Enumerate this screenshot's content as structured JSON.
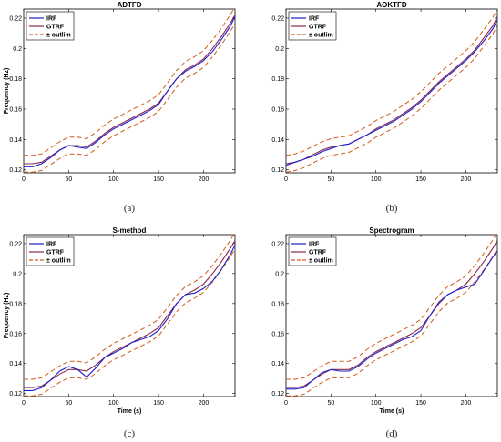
{
  "chart_data": [
    {
      "type": "line",
      "title": "ADTFD",
      "caption": "(a)",
      "xlabel": "",
      "ylabel": "Frequency (Hz)",
      "xlim": [
        0,
        235
      ],
      "ylim": [
        0.118,
        0.226
      ],
      "xticks": [
        0,
        50,
        100,
        150,
        200
      ],
      "yticks": [
        0.12,
        0.14,
        0.16,
        0.18,
        0.2,
        0.22
      ],
      "ytick_labels": [
        "0.12",
        "0.14",
        "0.16",
        "0.18",
        "0.2",
        "0.22"
      ],
      "legend": "top-left",
      "grid": false,
      "x": [
        0,
        10,
        20,
        30,
        40,
        50,
        60,
        70,
        80,
        90,
        100,
        110,
        120,
        130,
        140,
        150,
        160,
        170,
        180,
        190,
        200,
        210,
        220,
        230,
        235
      ],
      "series": [
        {
          "name": "IRF",
          "color": "#1f1fd0",
          "style": "solid",
          "values": [
            0.122,
            0.122,
            0.124,
            0.128,
            0.133,
            0.136,
            0.135,
            0.134,
            0.138,
            0.143,
            0.147,
            0.15,
            0.153,
            0.156,
            0.159,
            0.163,
            0.172,
            0.18,
            0.185,
            0.188,
            0.192,
            0.198,
            0.206,
            0.215,
            0.221
          ]
        },
        {
          "name": "GTRF",
          "color": "#8a2a4a",
          "style": "solid",
          "values": [
            0.124,
            0.124,
            0.125,
            0.129,
            0.133,
            0.136,
            0.136,
            0.135,
            0.139,
            0.144,
            0.148,
            0.151,
            0.154,
            0.157,
            0.16,
            0.164,
            0.172,
            0.18,
            0.186,
            0.189,
            0.193,
            0.2,
            0.208,
            0.217,
            0.222
          ]
        },
        {
          "name": "± outlim",
          "color": "#d05a1a",
          "style": "dashed",
          "offset": 0.0055
        }
      ]
    },
    {
      "type": "line",
      "title": "AOKTFD",
      "caption": "(b)",
      "xlabel": "",
      "ylabel": "",
      "xlim": [
        0,
        235
      ],
      "ylim": [
        0.118,
        0.226
      ],
      "xticks": [
        0,
        50,
        100,
        150,
        200
      ],
      "yticks": [
        0.12,
        0.14,
        0.16,
        0.18,
        0.2,
        0.22
      ],
      "ytick_labels": [
        "0.12",
        "0.14",
        "0.16",
        "0.18",
        "0.2",
        "0.22"
      ],
      "legend": "top-left",
      "grid": false,
      "x": [
        0,
        10,
        20,
        30,
        40,
        50,
        60,
        70,
        80,
        90,
        100,
        110,
        120,
        130,
        140,
        150,
        160,
        170,
        180,
        190,
        200,
        210,
        220,
        230,
        235
      ],
      "series": [
        {
          "name": "IRF",
          "color": "#1f1fd0",
          "style": "solid",
          "values": [
            0.123,
            0.125,
            0.127,
            0.129,
            0.132,
            0.134,
            0.136,
            0.137,
            0.14,
            0.143,
            0.146,
            0.149,
            0.152,
            0.156,
            0.16,
            0.165,
            0.171,
            0.177,
            0.182,
            0.187,
            0.192,
            0.198,
            0.205,
            0.213,
            0.219
          ]
        },
        {
          "name": "GTRF",
          "color": "#8a2a4a",
          "style": "solid",
          "values": [
            0.124,
            0.125,
            0.127,
            0.13,
            0.133,
            0.135,
            0.136,
            0.137,
            0.14,
            0.143,
            0.147,
            0.15,
            0.153,
            0.157,
            0.161,
            0.166,
            0.172,
            0.178,
            0.183,
            0.188,
            0.193,
            0.199,
            0.207,
            0.215,
            0.221
          ]
        },
        {
          "name": "± outlim",
          "color": "#d05a1a",
          "style": "dashed",
          "offset": 0.0055
        }
      ]
    },
    {
      "type": "line",
      "title": "S-method",
      "caption": "(c)",
      "xlabel": "Time (s)",
      "ylabel": "Frequency (Hz)",
      "xlim": [
        0,
        235
      ],
      "ylim": [
        0.118,
        0.226
      ],
      "xticks": [
        0,
        50,
        100,
        150,
        200
      ],
      "yticks": [
        0.12,
        0.14,
        0.16,
        0.18,
        0.2,
        0.22
      ],
      "ytick_labels": [
        "0.12",
        "0.14",
        "0.16",
        "0.18",
        "0.2",
        "0.22"
      ],
      "legend": "top-left",
      "grid": false,
      "x": [
        0,
        10,
        20,
        30,
        40,
        50,
        60,
        70,
        80,
        90,
        100,
        110,
        120,
        130,
        140,
        150,
        160,
        170,
        180,
        190,
        200,
        210,
        220,
        230,
        235
      ],
      "series": [
        {
          "name": "IRF",
          "color": "#1f1fd0",
          "style": "solid",
          "values": [
            0.122,
            0.122,
            0.124,
            0.129,
            0.135,
            0.138,
            0.136,
            0.131,
            0.137,
            0.144,
            0.147,
            0.15,
            0.154,
            0.156,
            0.158,
            0.162,
            0.17,
            0.18,
            0.186,
            0.187,
            0.19,
            0.195,
            0.203,
            0.213,
            0.219
          ]
        },
        {
          "name": "GTRF",
          "color": "#8a2a4a",
          "style": "solid",
          "values": [
            0.124,
            0.124,
            0.125,
            0.129,
            0.133,
            0.136,
            0.136,
            0.135,
            0.139,
            0.144,
            0.148,
            0.151,
            0.154,
            0.157,
            0.16,
            0.164,
            0.172,
            0.18,
            0.186,
            0.189,
            0.193,
            0.2,
            0.208,
            0.217,
            0.222
          ]
        },
        {
          "name": "± outlim",
          "color": "#d05a1a",
          "style": "dashed",
          "offset": 0.0055
        }
      ]
    },
    {
      "type": "line",
      "title": "Spectrogram",
      "caption": "(d)",
      "xlabel": "Time (s)",
      "ylabel": "",
      "xlim": [
        0,
        235
      ],
      "ylim": [
        0.118,
        0.226
      ],
      "xticks": [
        0,
        50,
        100,
        150,
        200
      ],
      "yticks": [
        0.12,
        0.14,
        0.16,
        0.18,
        0.2,
        0.22
      ],
      "ytick_labels": [
        "0.12",
        "0.14",
        "0.16",
        "0.18",
        "0.2",
        "0.22"
      ],
      "legend": "top-left",
      "grid": false,
      "x": [
        0,
        10,
        20,
        30,
        40,
        50,
        60,
        70,
        80,
        90,
        100,
        110,
        120,
        130,
        140,
        150,
        160,
        170,
        180,
        190,
        200,
        210,
        220,
        230,
        235
      ],
      "series": [
        {
          "name": "IRF",
          "color": "#1f1fd0",
          "style": "solid",
          "values": [
            0.123,
            0.123,
            0.124,
            0.129,
            0.134,
            0.136,
            0.135,
            0.135,
            0.138,
            0.143,
            0.147,
            0.15,
            0.153,
            0.156,
            0.158,
            0.162,
            0.172,
            0.181,
            0.186,
            0.189,
            0.191,
            0.193,
            0.202,
            0.211,
            0.215
          ]
        },
        {
          "name": "GTRF",
          "color": "#8a2a4a",
          "style": "solid",
          "values": [
            0.124,
            0.124,
            0.125,
            0.129,
            0.133,
            0.136,
            0.136,
            0.136,
            0.139,
            0.144,
            0.148,
            0.151,
            0.154,
            0.157,
            0.16,
            0.164,
            0.172,
            0.18,
            0.186,
            0.189,
            0.193,
            0.2,
            0.208,
            0.217,
            0.222
          ]
        },
        {
          "name": "± outlim",
          "color": "#d05a1a",
          "style": "dashed",
          "offset": 0.0055
        }
      ]
    }
  ]
}
